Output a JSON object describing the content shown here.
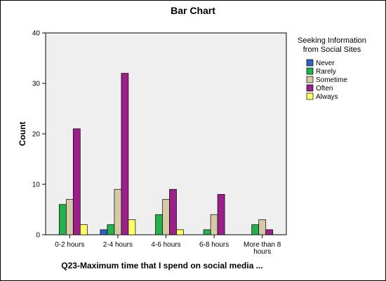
{
  "chart_data": {
    "type": "bar",
    "title": "Bar Chart",
    "xlabel": "Q23-Maximum time that I spend on social media ...",
    "ylabel": "Count",
    "ylim": [
      0,
      40
    ],
    "yticks": [
      0,
      10,
      20,
      30,
      40
    ],
    "grid": false,
    "legend_position": "right",
    "legend_title": [
      "Seeking Information",
      "from Social Sites"
    ],
    "categories": [
      [
        "0-2 hours"
      ],
      [
        "2-4 hours"
      ],
      [
        "4-6 hours"
      ],
      [
        "6-8 hours"
      ],
      [
        "More than 8",
        "hours"
      ]
    ],
    "series": [
      {
        "name": "Never",
        "color": "#3060c0",
        "values": [
          0,
          1,
          0,
          0,
          0
        ]
      },
      {
        "name": "Rarely",
        "color": "#22b14c",
        "values": [
          6,
          2,
          4,
          1,
          2
        ]
      },
      {
        "name": "Sometime",
        "color": "#d6c9a6",
        "values": [
          7,
          9,
          7,
          4,
          3
        ]
      },
      {
        "name": "Often",
        "color": "#9c1f8c",
        "values": [
          21,
          32,
          9,
          8,
          1
        ]
      },
      {
        "name": "Always",
        "color": "#ffff66",
        "values": [
          2,
          3,
          1,
          0,
          0
        ]
      }
    ],
    "plot_background": "#efefef"
  }
}
